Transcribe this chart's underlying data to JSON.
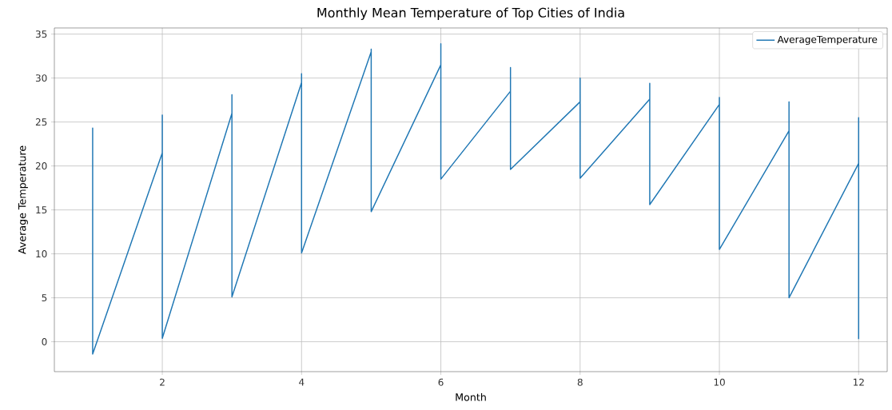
{
  "chart_data": {
    "type": "line",
    "title": "Monthly Mean Temperature of Top Cities of India",
    "xlabel": "Month",
    "ylabel": "Average Temperature",
    "series": [
      {
        "name": "AverageTemperature",
        "color": "#1f77b4",
        "x": [
          1,
          1,
          1,
          1,
          2,
          2,
          2,
          3,
          3,
          3,
          4,
          4,
          4,
          5,
          5,
          5,
          6,
          6,
          6,
          7,
          7,
          7,
          8,
          8,
          8,
          9,
          9,
          9,
          10,
          10,
          10,
          11,
          11,
          11,
          12,
          12,
          12
        ],
        "values": [
          18.5,
          24.3,
          18.5,
          -1.4,
          21.5,
          25.8,
          0.4,
          26.0,
          28.1,
          5.1,
          29.5,
          30.5,
          10.1,
          33.0,
          33.3,
          14.8,
          31.5,
          33.9,
          18.5,
          28.5,
          31.2,
          19.6,
          27.3,
          30.0,
          18.6,
          27.6,
          29.4,
          15.6,
          27.0,
          27.8,
          10.5,
          24.0,
          27.3,
          5.0,
          20.3,
          25.5,
          0.3
        ]
      }
    ],
    "xlim": [
      0.45,
      12.41
    ],
    "ylim": [
      -3.4,
      35.7
    ],
    "xticks": [
      2,
      4,
      6,
      8,
      10,
      12
    ],
    "yticks": [
      0,
      5,
      10,
      15,
      20,
      25,
      30,
      35
    ],
    "grid": true,
    "legend": "top right",
    "marker": "none",
    "line_style": "solid"
  }
}
